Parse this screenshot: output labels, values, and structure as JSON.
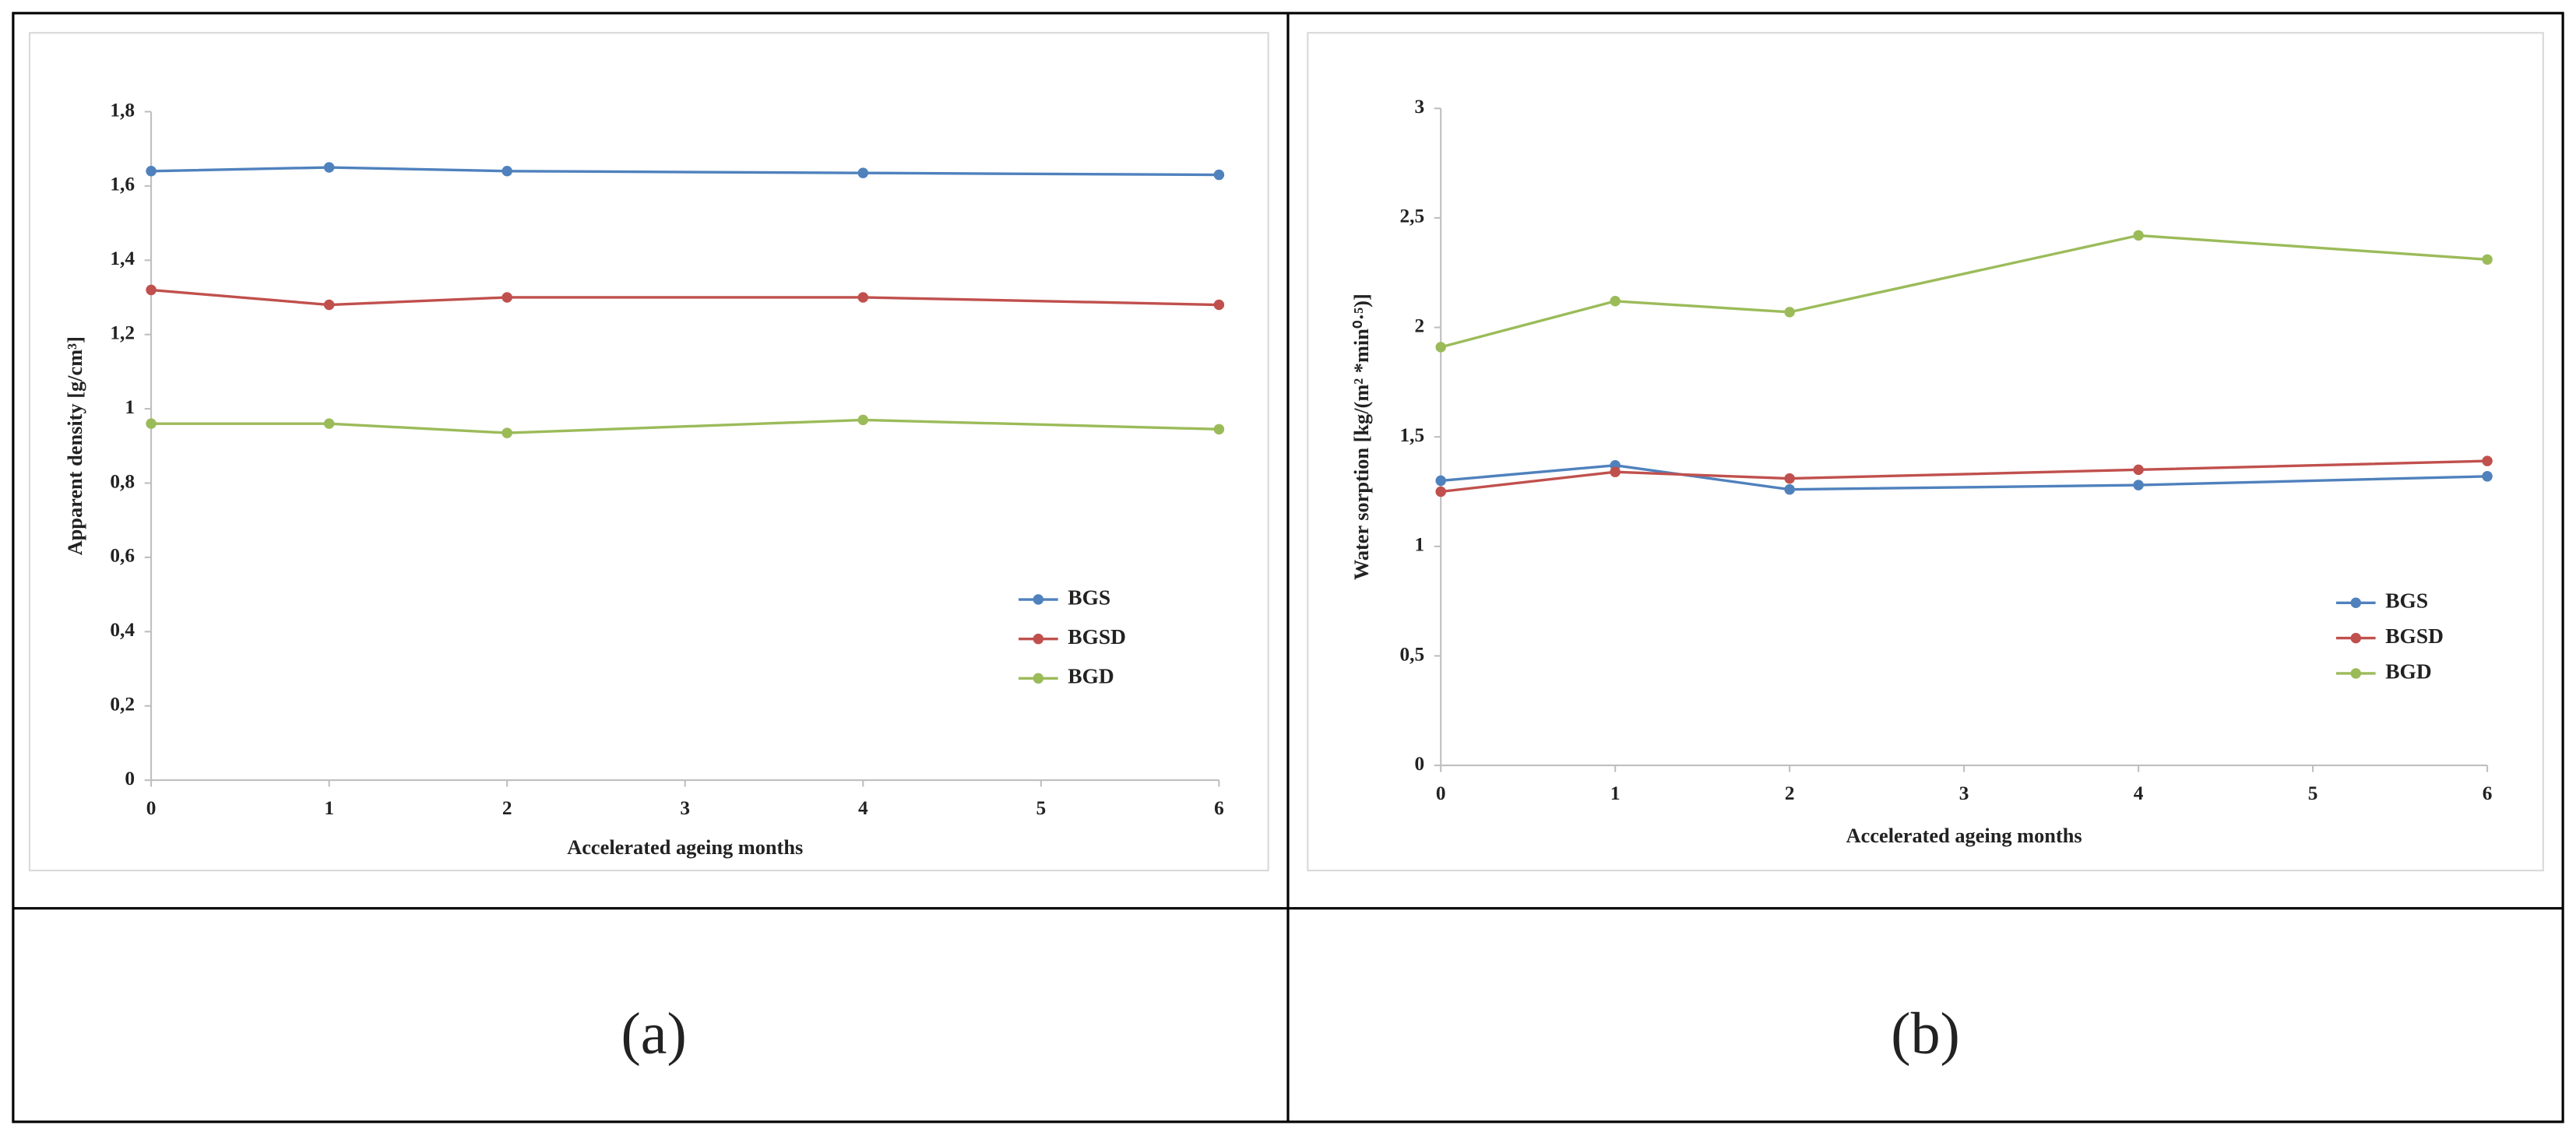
{
  "chart_data": [
    {
      "type": "line",
      "panel_label": "(a)",
      "x_label": "Accelerated ageing months",
      "y_label": "Apparent density [g/cm³]",
      "x": [
        0,
        1,
        2,
        4,
        6
      ],
      "xlim": [
        0,
        6
      ],
      "xticks": [
        0,
        1,
        2,
        3,
        4,
        5,
        6
      ],
      "ylim": [
        0,
        1.8
      ],
      "yticks": [
        0,
        {
          "value": 0.2,
          "label": "0,2"
        },
        {
          "value": 0.4,
          "label": "0,4"
        },
        {
          "value": 0.6,
          "label": "0,6"
        },
        {
          "value": 0.8,
          "label": "0,8"
        },
        1,
        {
          "value": 1.2,
          "label": "1,2"
        },
        {
          "value": 1.4,
          "label": "1,4"
        },
        {
          "value": 1.6,
          "label": "1,6"
        },
        {
          "value": 1.8,
          "label": "1,8"
        }
      ],
      "grid": false,
      "legend": "right",
      "series": [
        {
          "name": "BGS",
          "color": "#4f81bd",
          "values": [
            1.64,
            1.65,
            1.64,
            1.635,
            1.63
          ]
        },
        {
          "name": "BGSD",
          "color": "#c0504d",
          "values": [
            1.32,
            1.28,
            1.3,
            1.3,
            1.28
          ]
        },
        {
          "name": "BGD",
          "color": "#9bbb59",
          "values": [
            0.96,
            0.96,
            0.935,
            0.97,
            0.945
          ]
        }
      ]
    },
    {
      "type": "line",
      "panel_label": "(b)",
      "x_label": "Accelerated ageing months",
      "y_label": "Water sorption [kg/(m² *min⁰·⁵)]",
      "x": [
        0,
        1,
        2,
        4,
        6
      ],
      "xlim": [
        0,
        6
      ],
      "xticks": [
        0,
        1,
        2,
        3,
        4,
        5,
        6
      ],
      "ylim": [
        0,
        3
      ],
      "yticks": [
        0,
        {
          "value": 0.5,
          "label": "0,5"
        },
        1,
        {
          "value": 1.5,
          "label": "1,5"
        },
        2,
        {
          "value": 2.5,
          "label": "2,5"
        },
        3
      ],
      "grid": false,
      "legend": "right",
      "series": [
        {
          "name": "BGS",
          "color": "#4f81bd",
          "values": [
            1.3,
            1.37,
            1.26,
            1.28,
            1.32
          ]
        },
        {
          "name": "BGSD",
          "color": "#c0504d",
          "values": [
            1.25,
            1.34,
            1.31,
            1.35,
            1.39
          ]
        },
        {
          "name": "BGD",
          "color": "#9bbb59",
          "values": [
            1.91,
            2.12,
            2.07,
            2.42,
            2.31
          ]
        }
      ]
    }
  ]
}
